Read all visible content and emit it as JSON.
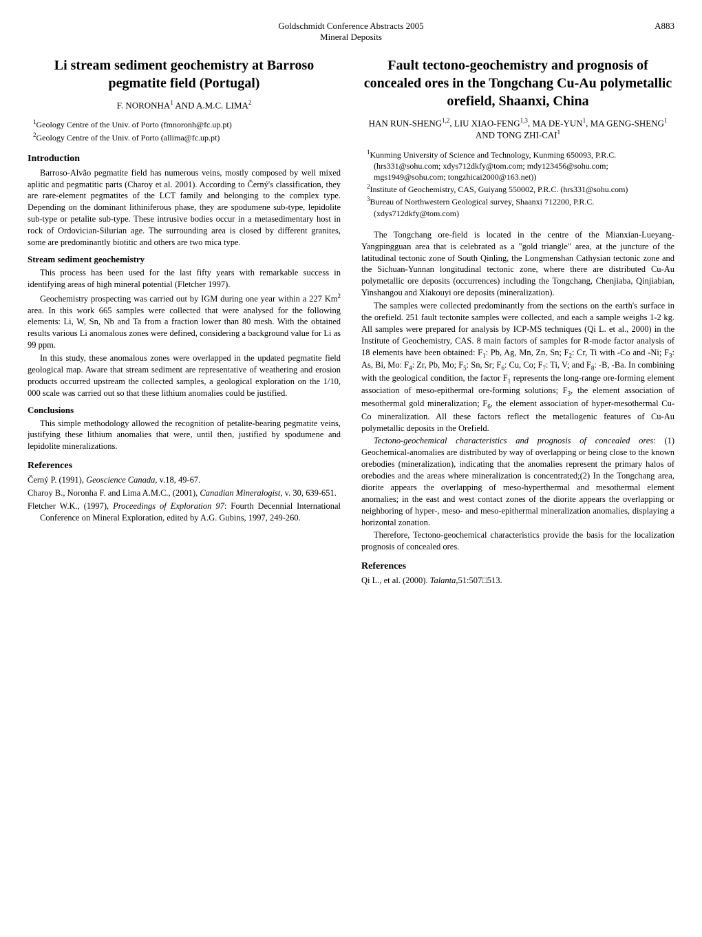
{
  "header": {
    "line1": "Goldschmidt Conference Abstracts 2005",
    "line2": "Mineral Deposits",
    "page_number": "A883"
  },
  "left_paper": {
    "title": "Li stream sediment geochemistry at Barroso pegmatite field (Portugal)",
    "authors_html": "F. N<span style='font-variant:small-caps'>ORONHA</span><sup>1</sup> AND A.M.C. L<span style='font-variant:small-caps'>IMA</span><sup>2</sup>",
    "affiliations": [
      "<sup>1</sup>Geology Centre of the Univ. of Porto (fmnoronh@fc.up.pt)",
      "<sup>2</sup>Geology Centre of the Univ. of Porto (allima@fc.up.pt)"
    ],
    "sections": [
      {
        "heading": "Introduction",
        "paragraphs": [
          "Barroso-Alvão pegmatite field has numerous veins, mostly composed by well mixed aplitic and pegmatitic parts (Charoy et al. 2001). According to Černý's classification, they are rare-element pegmatites of the LCT family and belonging to the complex type. Depending on the dominant lithiniferous phase, they are spodumene sub-type, lepidolite sub-type or petalite sub-type. These intrusive bodies occur in a metasedimentary host in rock of Ordovician-Silurian age. The surrounding area is closed by different granites, some are predominantly biotitic and others are two mica type."
        ]
      },
      {
        "heading": "Stream sediment geochemistry",
        "is_subsection": true,
        "paragraphs": [
          "This process has been used for the last fifty years with remarkable success in identifying areas of high mineral potential (Fletcher 1997).",
          "Geochemistry prospecting was carried out by IGM during one year within a 227 Km<sup>2</sup> area. In this work 665 samples were collected that were analysed for the following elements: Li, W, Sn, Nb and Ta from a fraction lower than 80 mesh. With the obtained results various Li anomalous zones were defined, considering a background value for Li as 99 ppm.",
          "In this study, these anomalous zones were overlapped in the updated pegmatite field geological map. Aware that stream sediment are representative of weathering and erosion products occurred upstream the collected samples, a geological exploration on the 1/10, 000 scale was carried out so that these lithium anomalies could be justified."
        ]
      },
      {
        "heading": "Conclusions",
        "is_subsection": true,
        "paragraphs": [
          "This simple methodology allowed the recognition of petalite-bearing pegmatite veins, justifying these lithium anomalies that were, until then, justified by spodumene and lepidolite mineralizations."
        ]
      }
    ],
    "references_heading": "References",
    "references": [
      "Černý P. (1991), <i>Geoscience Canada</i>, v.18, 49-67.",
      "Charoy B., Noronha F. and Lima A.M.C., (2001), <i>Canadian Mineralogist</i>, v. 30, 639-651.",
      "Fletcher W.K., (1997), <i>Proceedings of Exploration 97</i>: Fourth Decennial International Conference on Mineral Exploration, edited by A.G. Gubins, 1997, 249-260."
    ]
  },
  "right_paper": {
    "title": "Fault tectono-geochemistry and prognosis of concealed ores in the Tongchang Cu-Au polymetallic orefield, Shaanxi, China",
    "authors_html": "H<span style='font-variant:small-caps'>AN</span> R<span style='font-variant:small-caps'>UN</span>-S<span style='font-variant:small-caps'>HENG</span><sup>1,2</sup>, L<span style='font-variant:small-caps'>IU</span> X<span style='font-variant:small-caps'>IAO</span>-F<span style='font-variant:small-caps'>ENG</span><sup>1,3</sup>, M<span style='font-variant:small-caps'>A</span> D<span style='font-variant:small-caps'>E</span>-Y<span style='font-variant:small-caps'>UN</span><sup>1</sup>, M<span style='font-variant:small-caps'>A</span> G<span style='font-variant:small-caps'>ENG</span>-S<span style='font-variant:small-caps'>HENG</span><sup>1</sup> AND T<span style='font-variant:small-caps'>ONG</span> Z<span style='font-variant:small-caps'>HI</span>-C<span style='font-variant:small-caps'>AI</span><sup>1</sup>",
    "affiliations": [
      "<sup>1</sup>Kunming University of Science and Technology, Kunming 650093, P.R.C. (hrs331@sohu.com; xdys712dkfy@tom.com; mdy123456@sohu.com; mgs1949@sohu.com; tongzhicai2000@163.net))",
      "<sup>2</sup>Institute of Geochemistry, CAS, Guiyang 550002, P.R.C. (hrs331@sohu.com)",
      "<sup>3</sup>Bureau of Northwestern Geological survey, Shaanxi 712200, P.R.C. (xdys712dkfy@tom.com)"
    ],
    "paragraphs": [
      "The Tongchang ore-field is located in the centre of the Mianxian-Lueyang-Yangpingguan area that is celebrated as a \"gold triangle\" area, at the juncture of the latitudinal tectonic zone of South Qinling, the Longmenshan Cathysian tectonic zone and the Sichuan-Yunnan longitudinal tectonic zone, where there are distributed Cu-Au polymetallic ore deposits (occurrences) including the Tongchang, Chenjiaba, Qinjiabian, Yinshangou and Xiakouyi ore deposits (mineralization).",
      "The samples were collected predominantly from the sections on the earth's surface in the orefield. 251 fault tectonite samples were collected, and each a sample weighs 1-2 kg. All samples were prepared for analysis by ICP-MS techniques (Qi L. et al., 2000) in the Institute of Geochemistry, CAS. 8 main factors of samples for R-mode factor analysis of 18 elements have been obtained: F<sub>1</sub>: Pb, Ag, Mn, Zn, Sn; F<sub>2</sub>: Cr, Ti with -Co and -Ni; F<sub>3</sub>: As, Bi, Mo: F<sub>4</sub>: Zr, Pb, Mo; F<sub>5</sub>: Sn, Sr; F<sub>6</sub>: Cu, Co; F<sub>7</sub>: Ti, V; and F<sub>8</sub>: -B, -Ba. In combining with the geological condition, the factor F<sub>1</sub> represents the long-range ore-forming element association of meso-epithermal ore-forming solutions; F<sub>3</sub>, the element association of mesothermal gold mineralization; F<sub>6</sub>, the element association of hyper-mesothermal Cu-Co mineralization. All these factors reflect the metallogenic features of Cu-Au polymetallic deposits in the Orefield.",
      "<i>Tectono-geochemical characteristics and prognosis of concealed ores</i>: (1) Geochemical-anomalies are distributed by way of overlapping or being close to the known orebodies (mineralization), indicating that the anomalies represent the primary halos of orebodies and the areas where mineralization is concentrated;(2) In the Tongchang area, diorite appears the overlapping of meso-hyperthermal and mesothermal element anomalies; in the east and west contact zones of the diorite appears the overlapping or neighboring of hyper-, meso- and meso-epithermal mineralization anomalies, displaying a horizontal zonation.",
      "Therefore, Tectono-geochemical characteristics provide the basis for the localization prognosis of concealed ores."
    ],
    "references_heading": "References",
    "references": [
      "Qi L., et al. (2000). <i>Talanta</i>,51:507□513."
    ]
  }
}
